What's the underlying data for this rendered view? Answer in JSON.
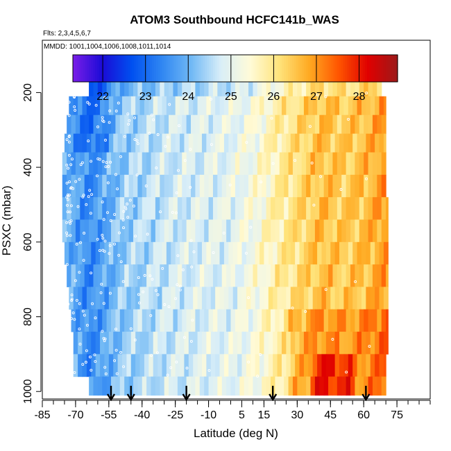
{
  "chart_data": {
    "type": "heatmap",
    "title": "ATOM3 Southbound HCFC141b_WAS",
    "flights_label": "Flts: 2,3,4,5,6,7",
    "dates_label": "MMDD: 1001,1004,1006,1008,1011,1014",
    "xlabel": "Latitude (deg N)",
    "ylabel": "PSXC (mbar)",
    "xlim": [
      -85,
      90
    ],
    "ylim": [
      1020,
      60
    ],
    "x_ticks": [
      -85,
      -70,
      -55,
      -40,
      -25,
      -10,
      5,
      15,
      30,
      45,
      60,
      75
    ],
    "x_tick_labels": [
      "-85",
      "-70",
      "-55",
      "-40",
      "-25",
      "-10",
      "5",
      "15",
      "30",
      "45",
      "60",
      "75"
    ],
    "y_ticks": [
      200,
      400,
      600,
      800,
      1000
    ],
    "y_tick_labels": [
      "200",
      "400",
      "600",
      "800",
      "1000"
    ],
    "colorbar": {
      "min": 21.3,
      "max": 28.9,
      "ticks": [
        22,
        23,
        24,
        25,
        26,
        27,
        28
      ],
      "tick_labels": [
        "22",
        "23",
        "24",
        "25",
        "26",
        "27",
        "28"
      ],
      "colors": [
        "#7a1ee8",
        "#1a0bd6",
        "#0050f0",
        "#2f86f2",
        "#6fb8f5",
        "#d8eef8",
        "#fffbd8",
        "#ffe37a",
        "#ffaa22",
        "#ff5500",
        "#e00000",
        "#9c1a1a"
      ]
    },
    "arrow_latitudes": [
      -54,
      -45,
      -20,
      19,
      61
    ],
    "lat_profile": [
      {
        "lat": -74,
        "value": 24.0
      },
      {
        "lat": -65,
        "value": 23.4
      },
      {
        "lat": -58,
        "value": 23.8
      },
      {
        "lat": -50,
        "value": 24.3
      },
      {
        "lat": -40,
        "value": 24.5
      },
      {
        "lat": -30,
        "value": 24.7
      },
      {
        "lat": -20,
        "value": 24.8
      },
      {
        "lat": -10,
        "value": 24.9
      },
      {
        "lat": 0,
        "value": 25.0
      },
      {
        "lat": 10,
        "value": 25.3
      },
      {
        "lat": 20,
        "value": 25.8
      },
      {
        "lat": 30,
        "value": 26.2
      },
      {
        "lat": 40,
        "value": 26.6
      },
      {
        "lat": 50,
        "value": 26.4
      },
      {
        "lat": 60,
        "value": 26.6
      },
      {
        "lat": 70,
        "value": 27.0
      }
    ]
  }
}
